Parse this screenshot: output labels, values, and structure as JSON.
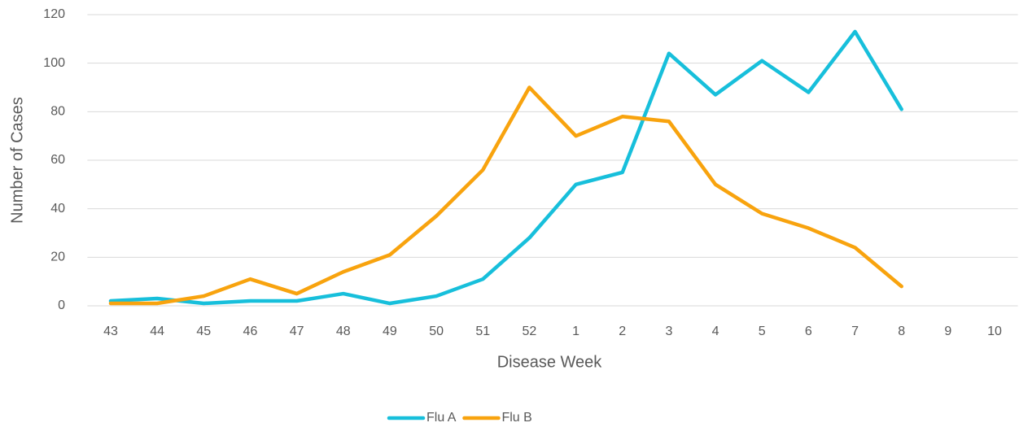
{
  "chart_data": {
    "type": "line",
    "x_label": "Disease Week",
    "y_label": "Number of Cases",
    "categories": [
      "43",
      "44",
      "45",
      "46",
      "47",
      "48",
      "49",
      "50",
      "51",
      "52",
      "1",
      "2",
      "3",
      "4",
      "5",
      "6",
      "7",
      "8",
      "9",
      "10"
    ],
    "series": [
      {
        "name": "Flu A",
        "color": "#17bfdb",
        "values": [
          2,
          3,
          1,
          2,
          2,
          5,
          1,
          4,
          11,
          28,
          50,
          55,
          104,
          87,
          101,
          88,
          113,
          81,
          null,
          null
        ]
      },
      {
        "name": "Flu B",
        "color": "#f8a30e",
        "values": [
          1,
          1,
          4,
          11,
          5,
          14,
          21,
          37,
          56,
          90,
          70,
          78,
          76,
          50,
          38,
          32,
          24,
          8,
          null,
          null
        ]
      }
    ],
    "ylim": [
      0,
      120
    ],
    "yticks": [
      0,
      20,
      40,
      60,
      80,
      100,
      120
    ],
    "grid": true,
    "legend": "bottom"
  }
}
